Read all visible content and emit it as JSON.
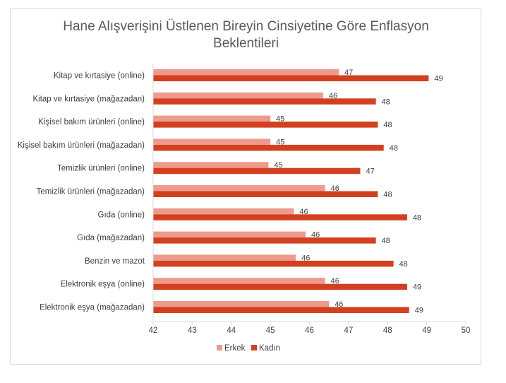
{
  "chart_data": {
    "type": "bar",
    "orientation": "horizontal",
    "title": "Hane Alışverişini Üstlenen Bireyin Cinsiyetine Göre Enflasyon Beklentileri",
    "title_lines": [
      "Hane Alışverişini Üstlenen Bireyin Cinsiyetine Göre Enflasyon",
      "Beklentileri"
    ],
    "categories": [
      "Kitap ve kırtasiye (online)",
      "Kitap ve kırtasiye (mağazadan)",
      "Kişisel bakım ürünleri (online)",
      "Kişisel bakım ürünleri (mağazadan)",
      "Temizlik ürünleri (online)",
      "Temizlik ürünleri (mağazadan)",
      "Gıda (online)",
      "Gıda (mağazadan)",
      "Benzin ve mazot",
      "Elektronik eşya (online)",
      "Elektronik eşya (mağazadan)"
    ],
    "series": [
      {
        "name": "Erkek",
        "color": "#EE9A8C",
        "values": [
          46.75,
          46.35,
          45.0,
          45.0,
          44.95,
          46.4,
          45.6,
          45.9,
          45.65,
          46.4,
          46.5
        ],
        "labels": [
          "47",
          "46",
          "45",
          "45",
          "45",
          "46",
          "46",
          "46",
          "46",
          "46",
          "46"
        ]
      },
      {
        "name": "Kadın",
        "color": "#D2401F",
        "values": [
          49.05,
          47.7,
          47.75,
          47.9,
          47.3,
          47.75,
          48.5,
          47.7,
          48.15,
          48.5,
          48.55
        ],
        "labels": [
          "49",
          "48",
          "48",
          "48",
          "47",
          "48",
          "48",
          "48",
          "48",
          "49",
          "49"
        ]
      }
    ],
    "xlim": [
      42,
      50
    ],
    "xticks": [
      "42",
      "43",
      "44",
      "45",
      "46",
      "47",
      "48",
      "49",
      "50"
    ],
    "grid": false,
    "legend_position": "bottom"
  }
}
